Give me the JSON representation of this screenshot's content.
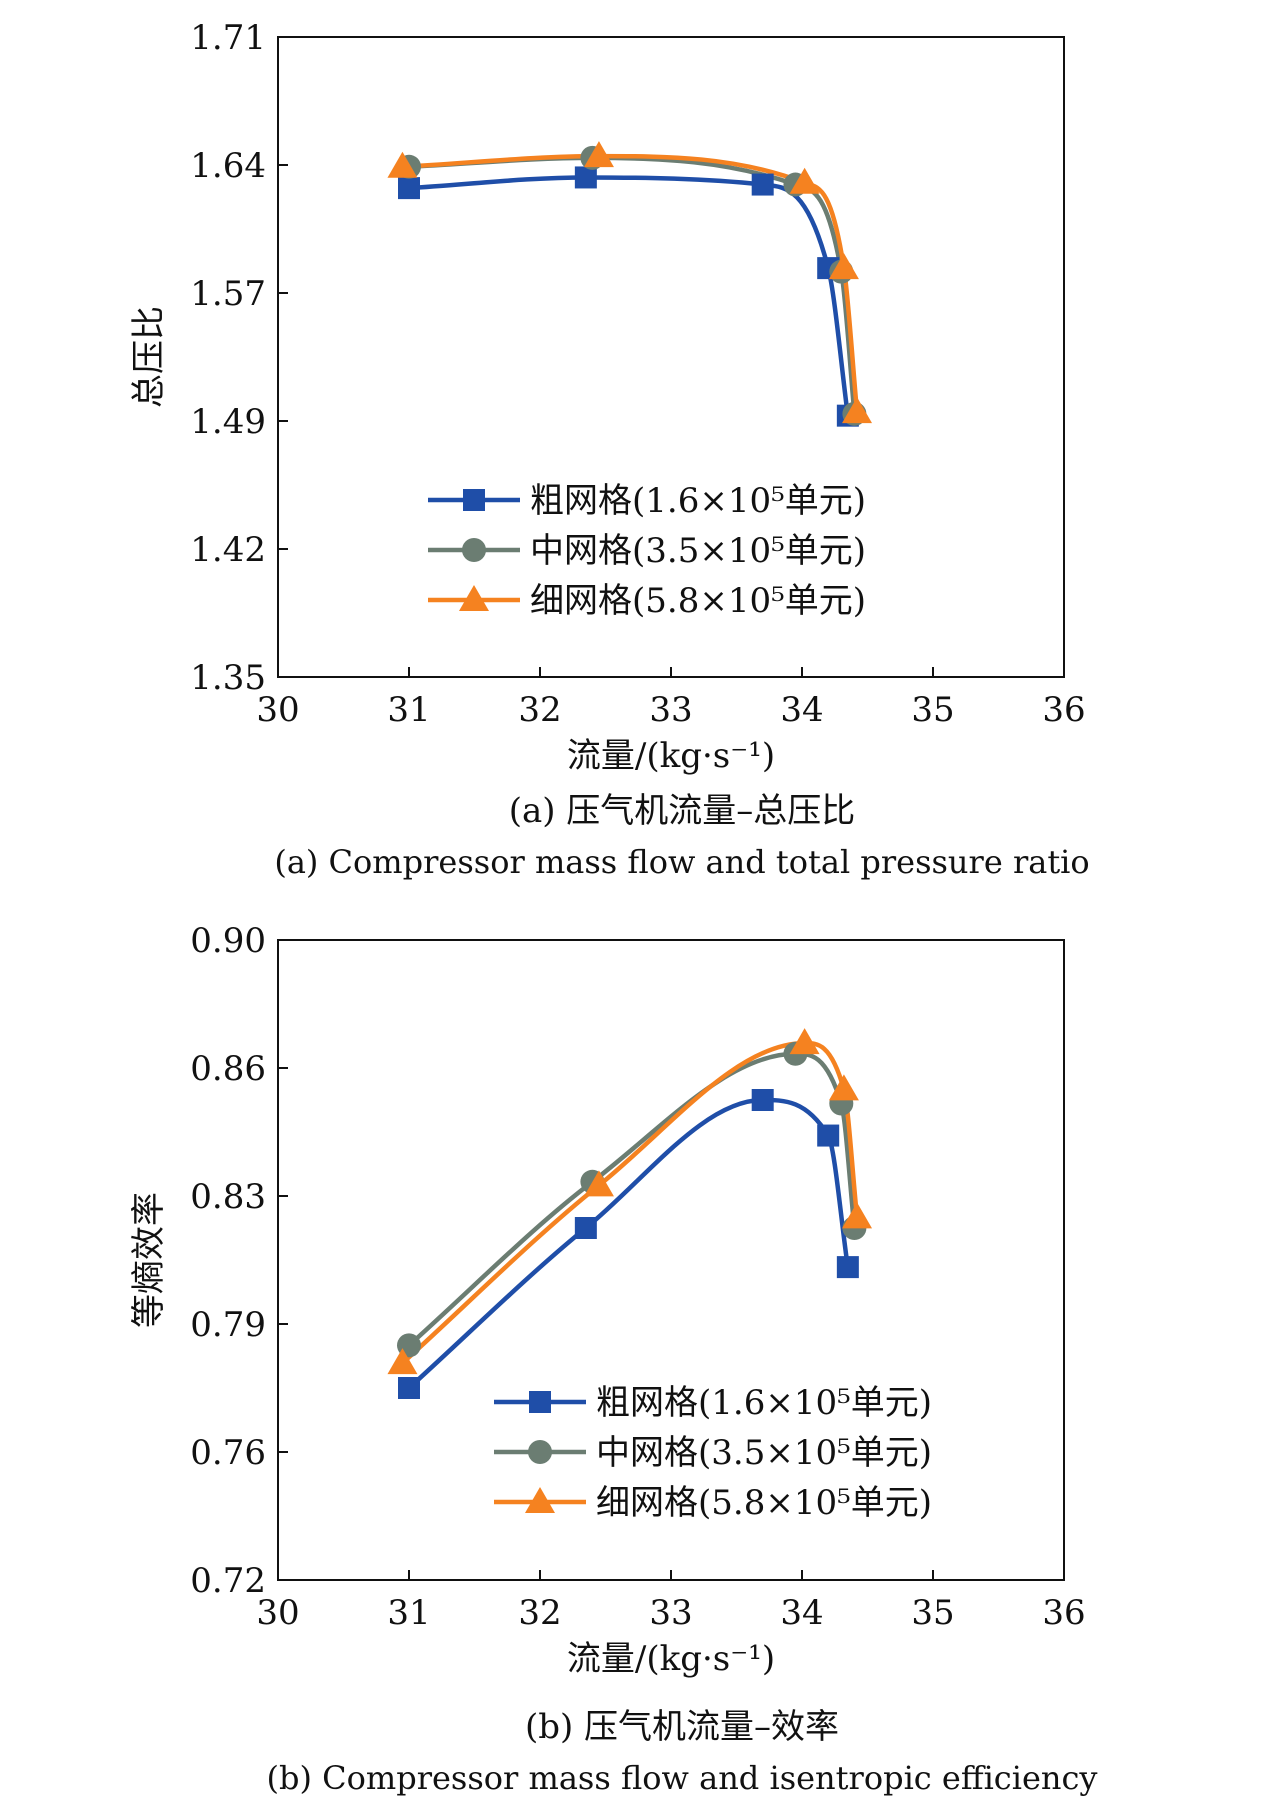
{
  "colors": {
    "coarse": "#1f4ea8",
    "medium": "#6b7d72",
    "fine": "#f58220",
    "axis": "#111111"
  },
  "chart_data": [
    {
      "type": "line",
      "caption_zh": "(a) 压气机流量–总压比",
      "caption_en": "(a) Compressor mass flow and total pressure ratio",
      "xlabel": "流量/(kg·s⁻¹)",
      "ylabel": "总压比",
      "xlim": [
        30,
        36
      ],
      "ylim": [
        1.35,
        1.71
      ],
      "xticks": [
        "30",
        "31",
        "32",
        "33",
        "34",
        "35",
        "36"
      ],
      "yticks": [
        "1.35",
        "1.42",
        "1.49",
        "1.57",
        "1.64",
        "1.71"
      ],
      "grid": false,
      "legend_position": "lower-center",
      "series": [
        {
          "name": "粗网格(1.6×10⁵单元)",
          "marker": "square",
          "color_key": "coarse",
          "x": [
            31.0,
            32.35,
            33.7,
            34.2,
            34.35
          ],
          "y": [
            1.625,
            1.631,
            1.627,
            1.58,
            1.497
          ]
        },
        {
          "name": "中网格(3.5×10⁵单元)",
          "marker": "circle",
          "color_key": "medium",
          "x": [
            31.0,
            32.4,
            33.95,
            34.3,
            34.4
          ],
          "y": [
            1.637,
            1.642,
            1.627,
            1.578,
            1.498
          ]
        },
        {
          "name": "细网格(5.8×10⁵单元)",
          "marker": "triangle",
          "color_key": "fine",
          "x": [
            30.95,
            32.45,
            34.02,
            34.32,
            34.42
          ],
          "y": [
            1.637,
            1.643,
            1.628,
            1.58,
            1.499
          ]
        }
      ]
    },
    {
      "type": "line",
      "caption_zh": "(b) 压气机流量–效率",
      "caption_en": "(b) Compressor mass flow and isentropic efficiency",
      "xlabel": "流量/(kg·s⁻¹)",
      "ylabel": "等熵效率",
      "xlim": [
        30,
        36
      ],
      "ylim": [
        0.72,
        0.9
      ],
      "xticks": [
        "30",
        "31",
        "32",
        "33",
        "34",
        "35",
        "36"
      ],
      "yticks": [
        "0.72",
        "0.76",
        "0.79",
        "0.83",
        "0.86",
        "0.90"
      ],
      "grid": false,
      "legend_position": "lower-right",
      "series": [
        {
          "name": "粗网格(1.6×10⁵单元)",
          "marker": "square",
          "color_key": "coarse",
          "x": [
            31.0,
            32.35,
            33.7,
            34.2,
            34.35
          ],
          "y": [
            0.774,
            0.819,
            0.855,
            0.845,
            0.808
          ]
        },
        {
          "name": "中网格(3.5×10⁵单元)",
          "marker": "circle",
          "color_key": "medium",
          "x": [
            31.0,
            32.4,
            33.95,
            34.3,
            34.4
          ],
          "y": [
            0.786,
            0.832,
            0.868,
            0.854,
            0.819
          ]
        },
        {
          "name": "细网格(5.8×10⁵单元)",
          "marker": "triangle",
          "color_key": "fine",
          "x": [
            30.95,
            32.45,
            34.02,
            34.32,
            34.42
          ],
          "y": [
            0.781,
            0.831,
            0.871,
            0.858,
            0.822
          ]
        }
      ]
    }
  ]
}
